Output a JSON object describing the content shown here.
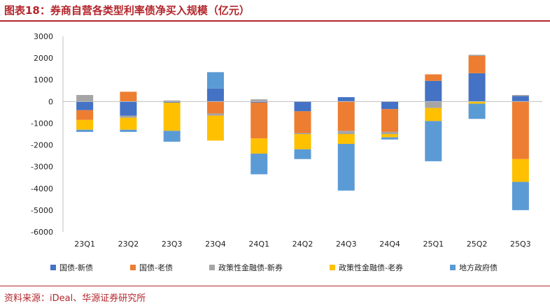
{
  "header": {
    "title": "图表18：券商自营各类型利率债净买入规模（亿元）"
  },
  "footer": {
    "source": "资料来源：iDeal、华源证券研究所"
  },
  "chart_data": {
    "type": "bar",
    "stacked": true,
    "title": "券商自营各类型利率债净买入规模（亿元）",
    "xlabel": "",
    "ylabel": "",
    "ylim": [
      -6000,
      3000
    ],
    "yticks": [
      3000,
      2000,
      1000,
      0,
      -1000,
      -2000,
      -3000,
      -4000,
      -5000,
      -6000
    ],
    "categories": [
      "23Q1",
      "23Q2",
      "23Q3",
      "23Q4",
      "24Q1",
      "24Q2",
      "24Q3",
      "24Q4",
      "25Q1",
      "25Q2",
      "25Q3"
    ],
    "legend_position": "bottom",
    "series": [
      {
        "name": "国债-新债",
        "color": "#4472c4",
        "values": [
          -400,
          -650,
          -50,
          600,
          -50,
          -450,
          200,
          -350,
          950,
          1300,
          250
        ]
      },
      {
        "name": "国债-老债",
        "color": "#ed7d31",
        "values": [
          -450,
          450,
          0,
          -550,
          -1650,
          -1000,
          -1350,
          -1050,
          300,
          800,
          -2650
        ]
      },
      {
        "name": "政策性金融债-新券",
        "color": "#a5a5a5",
        "values": [
          300,
          -100,
          50,
          -100,
          100,
          -50,
          -150,
          -100,
          -300,
          50,
          50
        ]
      },
      {
        "name": "政策性金融债-老券",
        "color": "#ffc000",
        "values": [
          -450,
          -550,
          -1300,
          -1150,
          -700,
          -700,
          -450,
          -150,
          -600,
          -100,
          -1050
        ]
      },
      {
        "name": "地方政府债",
        "color": "#5b9bd5",
        "values": [
          -100,
          -100,
          -500,
          750,
          -950,
          -450,
          -2150,
          -100,
          -1850,
          -700,
          -1300
        ]
      }
    ]
  }
}
